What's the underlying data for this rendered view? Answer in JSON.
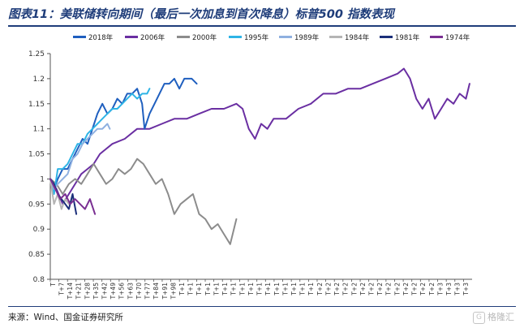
{
  "header": {
    "title": "图表11：美联储转向期间（最后一次加息到首次降息）标普500 指数表现"
  },
  "footer": {
    "source": "来源：Wind、国金证券研究所",
    "watermark": "格隆汇"
  },
  "chart_data": {
    "type": "line",
    "title": "",
    "xlabel": "",
    "ylabel": "",
    "ylim": [
      0.8,
      1.25
    ],
    "yticks": [
      0.8,
      0.85,
      0.9,
      0.95,
      1,
      1.05,
      1.1,
      1.15,
      1.2,
      1.25
    ],
    "xrange": [
      0,
      340
    ],
    "xtick_labels": [
      "T",
      "T+7",
      "T+14",
      "T+21",
      "T+28",
      "T+35",
      "T+42",
      "T+49",
      "T+56",
      "T+63",
      "T+70",
      "T+77",
      "T+84",
      "T+91",
      "T+98",
      "T+1",
      "T+1",
      "T+1",
      "T+1",
      "T+1",
      "T+1",
      "T+1",
      "T+1",
      "T+1",
      "T+1",
      "T+1",
      "T+1",
      "T+1",
      "T+1",
      "T+1",
      "T+1",
      "T+2",
      "T+2",
      "T+2",
      "T+2",
      "T+2",
      "T+2",
      "T+2",
      "T+2",
      "T+2",
      "T+2",
      "T+2",
      "T+2",
      "T+2",
      "T+2",
      "T+3",
      "T+3",
      "T+3",
      "T+3"
    ],
    "legend_position": "top",
    "series": [
      {
        "name": "2018年",
        "color": "#1f5fbf",
        "x": [
          0,
          3,
          6,
          10,
          14,
          18,
          22,
          26,
          30,
          34,
          38,
          42,
          46,
          50,
          54,
          58,
          62,
          66,
          70,
          74,
          76,
          80,
          84,
          88,
          92,
          96,
          100,
          104,
          108,
          110,
          114,
          118
        ],
        "y": [
          1.0,
          0.98,
          1.0,
          1.02,
          1.02,
          1.04,
          1.06,
          1.08,
          1.07,
          1.1,
          1.13,
          1.15,
          1.13,
          1.14,
          1.16,
          1.15,
          1.17,
          1.17,
          1.18,
          1.15,
          1.1,
          1.13,
          1.15,
          1.17,
          1.19,
          1.19,
          1.2,
          1.18,
          1.2,
          1.2,
          1.2,
          1.19
        ]
      },
      {
        "name": "2006年",
        "color": "#6a2fa2",
        "x": [
          0,
          5,
          10,
          15,
          20,
          25,
          30,
          35,
          40,
          50,
          60,
          70,
          80,
          90,
          100,
          110,
          120,
          130,
          140,
          150,
          155,
          160,
          165,
          170,
          175,
          180,
          190,
          200,
          210,
          220,
          230,
          240,
          250,
          260,
          270,
          280,
          285,
          290,
          295,
          300,
          305,
          310,
          315,
          320,
          325,
          330,
          335,
          338
        ],
        "y": [
          1.0,
          0.98,
          0.95,
          0.97,
          0.99,
          1.01,
          1.02,
          1.03,
          1.05,
          1.07,
          1.08,
          1.1,
          1.1,
          1.11,
          1.12,
          1.12,
          1.13,
          1.14,
          1.14,
          1.15,
          1.14,
          1.1,
          1.08,
          1.11,
          1.1,
          1.12,
          1.12,
          1.14,
          1.15,
          1.17,
          1.17,
          1.18,
          1.18,
          1.19,
          1.2,
          1.21,
          1.22,
          1.2,
          1.16,
          1.14,
          1.16,
          1.12,
          1.14,
          1.16,
          1.15,
          1.17,
          1.16,
          1.19
        ]
      },
      {
        "name": "2000年",
        "color": "#8c8c8c",
        "x": [
          0,
          5,
          10,
          15,
          20,
          25,
          30,
          35,
          40,
          45,
          50,
          55,
          60,
          65,
          70,
          75,
          80,
          85,
          90,
          95,
          100,
          105,
          110,
          115,
          120,
          125,
          130,
          135,
          140,
          145,
          150
        ],
        "y": [
          1.0,
          0.99,
          0.97,
          0.99,
          1.0,
          0.99,
          1.01,
          1.03,
          1.01,
          0.99,
          1.0,
          1.02,
          1.01,
          1.02,
          1.04,
          1.03,
          1.01,
          0.99,
          1.0,
          0.97,
          0.93,
          0.95,
          0.96,
          0.97,
          0.93,
          0.92,
          0.9,
          0.91,
          0.89,
          0.87,
          0.92
        ]
      },
      {
        "name": "1995年",
        "color": "#2eb4e6",
        "x": [
          0,
          3,
          6,
          10,
          14,
          18,
          22,
          26,
          30,
          34,
          38,
          42,
          46,
          50,
          54,
          58,
          62,
          66,
          70,
          74,
          78,
          80
        ],
        "y": [
          1.0,
          0.97,
          1.02,
          1.02,
          1.03,
          1.05,
          1.07,
          1.07,
          1.09,
          1.1,
          1.11,
          1.12,
          1.13,
          1.14,
          1.14,
          1.15,
          1.16,
          1.17,
          1.16,
          1.17,
          1.17,
          1.18
        ]
      },
      {
        "name": "1989年",
        "color": "#8fb0e0",
        "x": [
          0,
          3,
          6,
          10,
          14,
          18,
          22,
          26,
          30,
          34,
          38,
          42,
          46,
          48
        ],
        "y": [
          1.0,
          0.98,
          0.99,
          1.0,
          1.01,
          1.04,
          1.05,
          1.07,
          1.08,
          1.09,
          1.1,
          1.1,
          1.11,
          1.1
        ]
      },
      {
        "name": "1984年",
        "color": "#b5b5b5",
        "x": [
          0,
          3,
          6,
          9,
          12,
          15,
          18
        ],
        "y": [
          1.0,
          0.95,
          0.97,
          0.94,
          0.96,
          0.95,
          0.96
        ]
      },
      {
        "name": "1981年",
        "color": "#1b2f7a",
        "x": [
          0,
          3,
          6,
          9,
          12,
          15,
          18,
          21
        ],
        "y": [
          1.0,
          0.99,
          0.97,
          0.96,
          0.95,
          0.94,
          0.97,
          0.93
        ]
      },
      {
        "name": "1974年",
        "color": "#7a2f92",
        "x": [
          0,
          4,
          8,
          12,
          16,
          20,
          24,
          28,
          32,
          36
        ],
        "y": [
          1.0,
          0.98,
          0.96,
          0.97,
          0.95,
          0.96,
          0.95,
          0.94,
          0.96,
          0.93
        ]
      }
    ]
  }
}
